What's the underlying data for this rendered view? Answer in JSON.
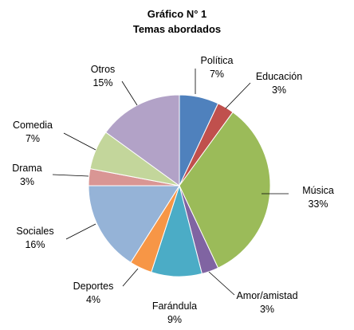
{
  "chart_data": {
    "type": "pie",
    "title": "Gráfico N° 1",
    "subtitle": "Temas abordados",
    "slices": [
      {
        "label": "Política",
        "value": 7,
        "value_label": "7%",
        "color": "#4F81BD"
      },
      {
        "label": "Educación",
        "value": 3,
        "value_label": "3%",
        "color": "#C0504D"
      },
      {
        "label": "Música",
        "value": 33,
        "value_label": "33%",
        "color": "#9BBB59"
      },
      {
        "label": "Amor/amistad",
        "value": 3,
        "value_label": "3%",
        "color": "#8064A2"
      },
      {
        "label": "Farándula",
        "value": 9,
        "value_label": "9%",
        "color": "#4BACC6"
      },
      {
        "label": "Deportes",
        "value": 4,
        "value_label": "4%",
        "color": "#F79646"
      },
      {
        "label": "Sociales",
        "value": 16,
        "value_label": "16%",
        "color": "#95B3D7"
      },
      {
        "label": "Drama",
        "value": 3,
        "value_label": "3%",
        "color": "#D99694"
      },
      {
        "label": "Comedia",
        "value": 7,
        "value_label": "7%",
        "color": "#C3D69B"
      },
      {
        "label": "Otros",
        "value": 15,
        "value_label": "15%",
        "color": "#B2A2C7"
      }
    ],
    "legend": "none"
  }
}
